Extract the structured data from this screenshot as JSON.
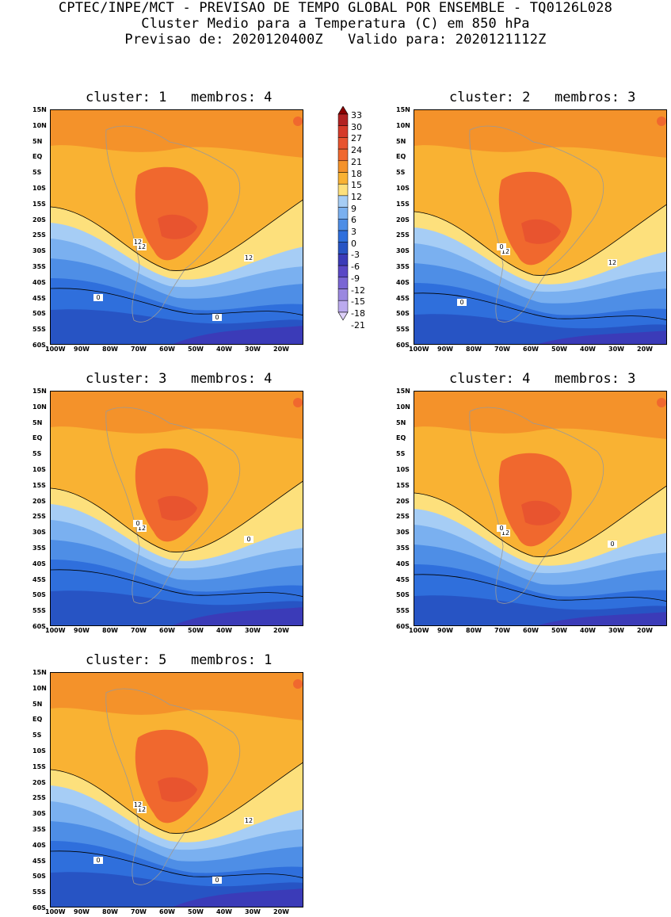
{
  "header": {
    "line1": "CPTEC/INPE/MCT - PREVISAO DE TEMPO GLOBAL POR ENSEMBLE - TQ0126L028",
    "line2": "Cluster Medio para a Temperatura (C) em 850 hPa",
    "line3": "Previsao de: 2020120400Z   Valido para: 2020121112Z"
  },
  "lat_labels": [
    "15N",
    "10N",
    "5N",
    "EQ",
    "5S",
    "10S",
    "15S",
    "20S",
    "25S",
    "30S",
    "35S",
    "40S",
    "45S",
    "50S",
    "55S",
    "60S"
  ],
  "lon_labels": [
    "100W",
    "90W",
    "80W",
    "70W",
    "60W",
    "50W",
    "40W",
    "30W",
    "20W"
  ],
  "colorbar": {
    "levels": [
      "33",
      "30",
      "27",
      "24",
      "21",
      "18",
      "15",
      "12",
      "9",
      "6",
      "3",
      "0",
      "-3",
      "-6",
      "-9",
      "-12",
      "-15",
      "-18",
      "-21"
    ],
    "colors": [
      "#8b0000",
      "#b22222",
      "#d63b2a",
      "#e8542f",
      "#f0682e",
      "#f4922a",
      "#f9b233",
      "#fde07c",
      "#a6cdf5",
      "#7ab0f0",
      "#4e8ee6",
      "#2f6fdc",
      "#2754c4",
      "#3b3bb8",
      "#5a48c6",
      "#7a66d4",
      "#9a88e0",
      "#bbaaee",
      "#ddd0f8"
    ]
  },
  "panels": [
    {
      "title": "cluster: 1   membros: 4",
      "contours": [
        "12",
        "12",
        "12",
        "0",
        "0"
      ]
    },
    {
      "title": "cluster: 2   membros: 3",
      "contours": [
        "12",
        "12",
        "0",
        "0"
      ]
    },
    {
      "title": "cluster: 3   membros: 4",
      "contours": [
        "12",
        "0",
        "0"
      ]
    },
    {
      "title": "cluster: 4   membros: 3",
      "contours": [
        "12",
        "0",
        "0"
      ]
    },
    {
      "title": "cluster: 5   membros: 1",
      "contours": [
        "12",
        "12",
        "12",
        "0",
        "0"
      ]
    }
  ]
}
